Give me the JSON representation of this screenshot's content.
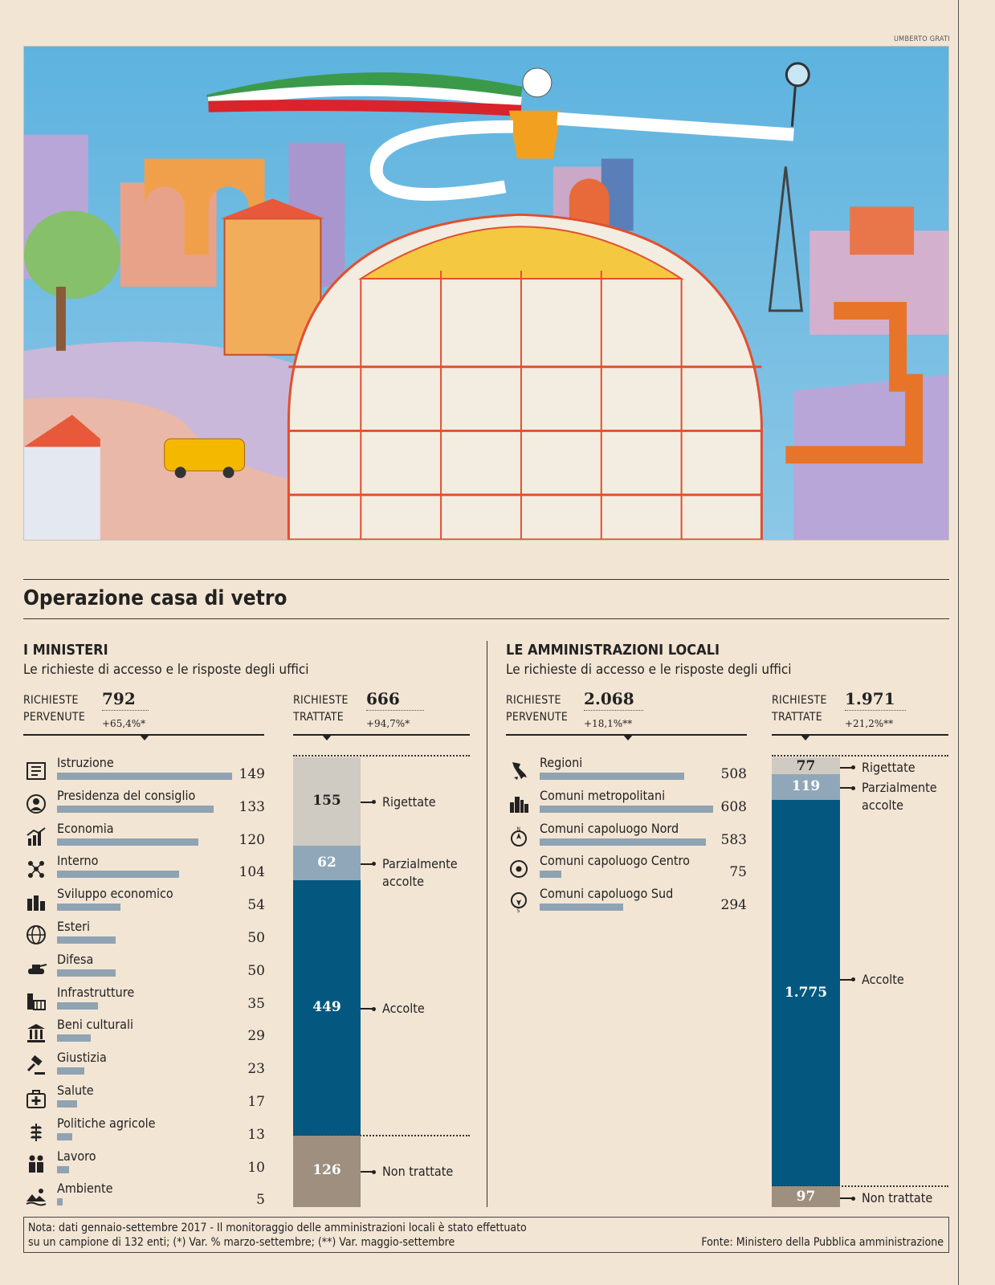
{
  "credit": "UMBERTO GRATI",
  "title": "Operazione casa di vetro",
  "ministeri": {
    "heading": "I MINISTERI",
    "subtitle": "Le richieste di accesso e le risposte degli uffici",
    "pervenute_label_1": "RICHIESTE",
    "pervenute_label_2": "PERVENUTE",
    "pervenute_value": "792",
    "pervenute_var": "+65,4%*",
    "trattate_label_1": "RICHIESTE",
    "trattate_label_2": "TRATTATE",
    "trattate_value": "666",
    "trattate_var": "+94,7%*"
  },
  "locali": {
    "heading": "LE AMMINISTRAZIONI LOCALI",
    "subtitle": "Le richieste di accesso e le risposte degli uffici",
    "pervenute_label_1": "RICHIESTE",
    "pervenute_label_2": "PERVENUTE",
    "pervenute_value": "2.068",
    "pervenute_var": "+18,1%**",
    "trattate_label_1": "RICHIESTE",
    "trattate_label_2": "TRATTATE",
    "trattate_value": "1.971",
    "trattate_var": "+21,2%**"
  },
  "chart_data": [
    {
      "type": "bar",
      "orientation": "horizontal",
      "categories": [
        "Istruzione",
        "Presidenza del consiglio",
        "Economia",
        "Interno",
        "Sviluppo economico",
        "Esteri",
        "Difesa",
        "Infrastrutture",
        "Beni culturali",
        "Giustizia",
        "Salute",
        "Politiche agricole",
        "Lavoro",
        "Ambiente"
      ],
      "values": [
        149,
        133,
        120,
        104,
        54,
        50,
        50,
        35,
        29,
        23,
        17,
        13,
        10,
        5
      ],
      "icons": [
        "book-icon",
        "government-icon",
        "economy-chart-icon",
        "people-network-icon",
        "industry-icon",
        "globe-icon",
        "tank-icon",
        "infrastructure-icon",
        "temple-icon",
        "gavel-icon",
        "medical-kit-icon",
        "wheat-icon",
        "workers-icon",
        "landscape-icon"
      ],
      "bar_color": "#8fa3b3"
    },
    {
      "type": "bar",
      "orientation": "stacked-vertical",
      "total": 792,
      "segments": [
        {
          "label": "Rigettate",
          "value": 155,
          "display": "155",
          "color": "#cfcac2",
          "text_color": "#222222"
        },
        {
          "label": "Parzialmente accolte",
          "value": 62,
          "display": "62",
          "color": "#8fa7b8",
          "text_color": "#ffffff"
        },
        {
          "label": "Accolte",
          "value": 449,
          "display": "449",
          "color": "#04587f",
          "text_color": "#ffffff"
        },
        {
          "label": "Non trattate",
          "value": 126,
          "display": "126",
          "color": "#9e8f7e",
          "text_color": "#ffffff"
        }
      ]
    },
    {
      "type": "bar",
      "orientation": "horizontal",
      "categories": [
        "Regioni",
        "Comuni metropolitani",
        "Comuni capoluogo Nord",
        "Comuni capoluogo Centro",
        "Comuni capoluogo Sud"
      ],
      "values": [
        508,
        608,
        583,
        75,
        294
      ],
      "icons": [
        "italy-map-icon",
        "city-skyline-icon",
        "compass-north-icon",
        "compass-center-icon",
        "compass-south-icon"
      ],
      "bar_color": "#8fa3b3"
    },
    {
      "type": "bar",
      "orientation": "stacked-vertical",
      "total": 2068,
      "segments": [
        {
          "label": "Rigettate",
          "value": 77,
          "display": "77",
          "color": "#cfcac2",
          "text_color": "#222222"
        },
        {
          "label": "Parzialmente accolte",
          "value": 119,
          "display": "119",
          "color": "#8fa7b8",
          "text_color": "#ffffff"
        },
        {
          "label": "Accolte",
          "value": 1775,
          "display": "1.775",
          "color": "#04587f",
          "text_color": "#ffffff"
        },
        {
          "label": "Non trattate",
          "value": 97,
          "display": "97",
          "color": "#9e8f7e",
          "text_color": "#ffffff"
        }
      ]
    }
  ],
  "annotations": {
    "rigettate": "Rigettate",
    "parzialmente_1": "Parzialmente",
    "parzialmente_2": "accolte",
    "accolte": "Accolte",
    "non_trattate": "Non trattate"
  },
  "note": {
    "line1": "Nota: dati gennaio-settembre 2017 - Il monitoraggio delle amministrazioni locali è stato effettuato",
    "line2": "su un campione di 132 enti; (*) Var. %  marzo-settembre;  (**) Var. maggio-settembre",
    "source": "Fonte: Ministero della Pubblica amministrazione"
  }
}
